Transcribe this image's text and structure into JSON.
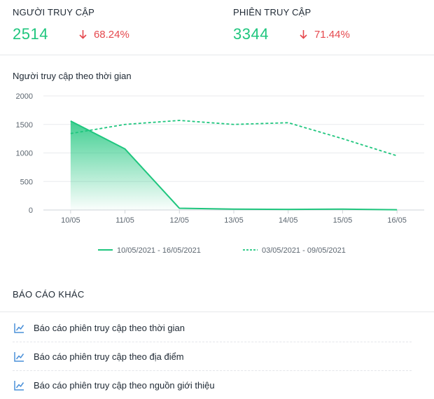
{
  "stats": [
    {
      "title": "NGƯỜI TRUY CẬP",
      "value": "2514",
      "change": "68.24%",
      "direction": "down"
    },
    {
      "title": "PHIÊN TRUY CẬP",
      "value": "3344",
      "change": "71.44%",
      "direction": "down"
    }
  ],
  "chart_title": "Người truy cập theo thời gian",
  "chart_data": {
    "type": "area",
    "categories": [
      "10/05",
      "11/05",
      "12/05",
      "13/05",
      "14/05",
      "15/05",
      "16/05"
    ],
    "ylim": [
      0,
      2000
    ],
    "yticks": [
      "0",
      "500",
      "1000",
      "1500",
      "2000"
    ],
    "grid": true,
    "legend_position": "bottom",
    "series": [
      {
        "name": "10/05/2021 - 16/05/2021",
        "values": [
          1560,
          1070,
          30,
          15,
          10,
          15,
          5
        ],
        "style": "solid",
        "color": "#1fc67e"
      },
      {
        "name": "03/05/2021 - 09/05/2021",
        "values": [
          1340,
          1500,
          1570,
          1500,
          1530,
          1250,
          950
        ],
        "style": "dashed",
        "color": "#1fc67e"
      }
    ]
  },
  "other_reports": {
    "title": "BÁO CÁO KHÁC",
    "items": [
      {
        "label": "Báo cáo phiên truy cập theo thời gian",
        "icon": "line-chart-icon"
      },
      {
        "label": "Báo cáo phiên truy cập theo địa điểm",
        "icon": "line-chart-icon"
      },
      {
        "label": "Báo cáo phiên truy cập theo nguồn giới thiệu",
        "icon": "line-chart-icon"
      }
    ]
  },
  "colors": {
    "positive": "#1fc67e",
    "negative": "#e5484d",
    "icon": "#4a90d9"
  }
}
